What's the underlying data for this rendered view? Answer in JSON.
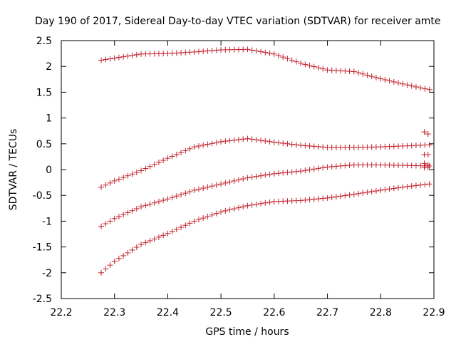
{
  "chart_data": {
    "type": "scatter",
    "title": "Day 190 of 2017, Sidereal Day-to-day VTEC variation (SDTVAR) for receiver amte",
    "xlabel": "GPS time / hours",
    "ylabel": "SDTVAR / TECUs",
    "xlim": [
      22.2,
      22.9
    ],
    "ylim": [
      -2.5,
      2.5
    ],
    "xticks": [
      "22.2",
      "22.3",
      "22.4",
      "22.5",
      "22.6",
      "22.7",
      "22.8",
      "22.9"
    ],
    "yticks": [
      "-2.5",
      "-2",
      "-1.5",
      "-1",
      "-0.5",
      "0",
      "0.5",
      "1",
      "1.5",
      "2",
      "2.5"
    ],
    "xtick_values": [
      22.2,
      22.3,
      22.4,
      22.5,
      22.6,
      22.7,
      22.8,
      22.9
    ],
    "ytick_values": [
      -2.5,
      -2,
      -1.5,
      -1,
      -0.5,
      0,
      0.5,
      1,
      1.5,
      2,
      2.5
    ],
    "marker": "plus",
    "marker_color": "#c0202a",
    "series": [
      {
        "name": "series-1",
        "x_start": 22.275,
        "x_end": 22.89,
        "x_step": 0.00833,
        "anchors": [
          [
            22.275,
            2.12
          ],
          [
            22.3,
            2.16
          ],
          [
            22.35,
            2.24
          ],
          [
            22.4,
            2.25
          ],
          [
            22.45,
            2.28
          ],
          [
            22.5,
            2.32
          ],
          [
            22.55,
            2.33
          ],
          [
            22.6,
            2.24
          ],
          [
            22.65,
            2.06
          ],
          [
            22.7,
            1.93
          ],
          [
            22.75,
            1.9
          ],
          [
            22.8,
            1.76
          ],
          [
            22.85,
            1.64
          ],
          [
            22.89,
            1.55
          ]
        ]
      },
      {
        "name": "series-2",
        "x_start": 22.275,
        "x_end": 22.89,
        "x_step": 0.00833,
        "anchors": [
          [
            22.275,
            -0.34
          ],
          [
            22.3,
            -0.22
          ],
          [
            22.35,
            -0.02
          ],
          [
            22.4,
            0.22
          ],
          [
            22.45,
            0.44
          ],
          [
            22.5,
            0.54
          ],
          [
            22.55,
            0.6
          ],
          [
            22.6,
            0.53
          ],
          [
            22.65,
            0.47
          ],
          [
            22.7,
            0.43
          ],
          [
            22.75,
            0.43
          ],
          [
            22.8,
            0.44
          ],
          [
            22.85,
            0.46
          ],
          [
            22.89,
            0.48
          ]
        ]
      },
      {
        "name": "series-3",
        "x_start": 22.275,
        "x_end": 22.89,
        "x_step": 0.00833,
        "anchors": [
          [
            22.275,
            -1.1
          ],
          [
            22.3,
            -0.95
          ],
          [
            22.35,
            -0.72
          ],
          [
            22.4,
            -0.57
          ],
          [
            22.45,
            -0.4
          ],
          [
            22.5,
            -0.28
          ],
          [
            22.55,
            -0.16
          ],
          [
            22.6,
            -0.08
          ],
          [
            22.65,
            -0.03
          ],
          [
            22.7,
            0.05
          ],
          [
            22.75,
            0.09
          ],
          [
            22.8,
            0.09
          ],
          [
            22.85,
            0.08
          ],
          [
            22.89,
            0.07
          ]
        ]
      },
      {
        "name": "series-4",
        "x_start": 22.275,
        "x_end": 22.89,
        "x_step": 0.00833,
        "anchors": [
          [
            22.275,
            -2.0
          ],
          [
            22.3,
            -1.78
          ],
          [
            22.35,
            -1.45
          ],
          [
            22.4,
            -1.24
          ],
          [
            22.45,
            -1.0
          ],
          [
            22.5,
            -0.82
          ],
          [
            22.55,
            -0.7
          ],
          [
            22.6,
            -0.62
          ],
          [
            22.65,
            -0.6
          ],
          [
            22.7,
            -0.55
          ],
          [
            22.75,
            -0.48
          ],
          [
            22.8,
            -0.4
          ],
          [
            22.85,
            -0.33
          ],
          [
            22.89,
            -0.28
          ]
        ]
      },
      {
        "name": "outliers",
        "points": [
          [
            22.882,
            0.73
          ],
          [
            22.889,
            0.69
          ],
          [
            22.882,
            0.29
          ],
          [
            22.889,
            0.29
          ],
          [
            22.882,
            0.12
          ],
          [
            22.889,
            0.09
          ],
          [
            22.882,
            0.04
          ],
          [
            22.889,
            0.04
          ]
        ]
      }
    ]
  }
}
